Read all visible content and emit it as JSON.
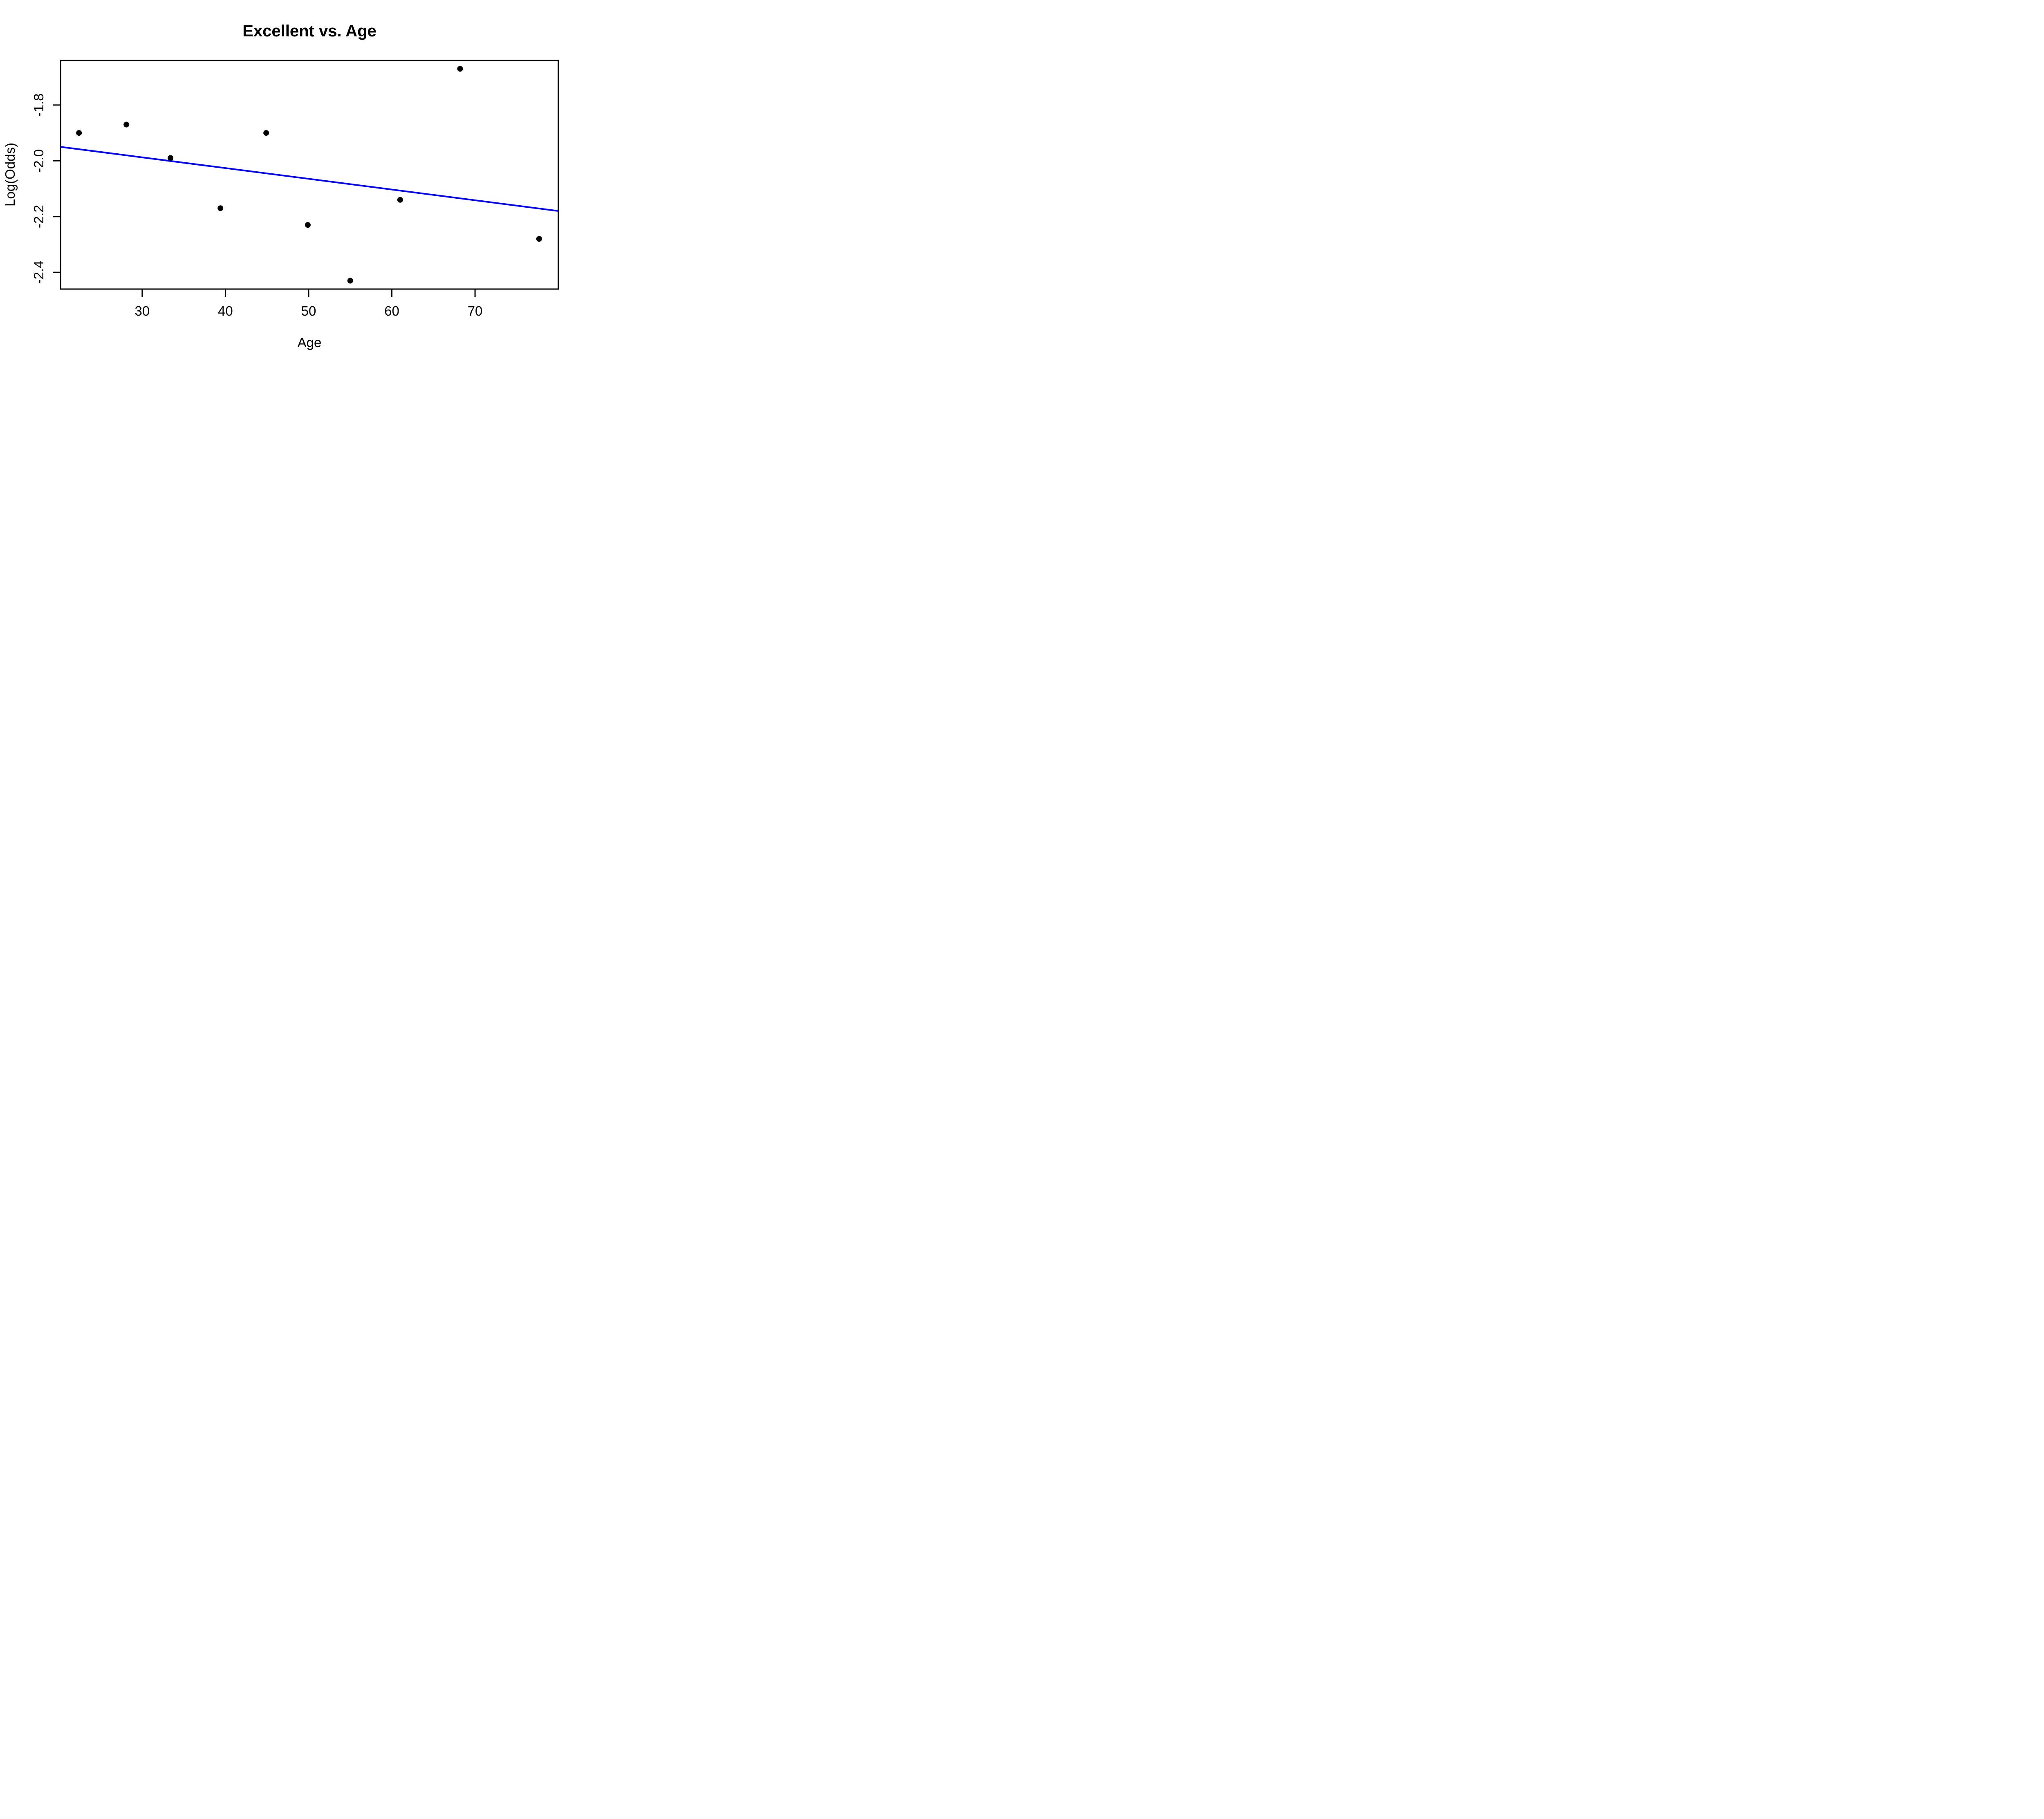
{
  "chart_data": {
    "type": "scatter",
    "title": "Excellent vs. Age",
    "xlabel": "Age",
    "ylabel": "Log(Odds)",
    "xlim": [
      20.2,
      80.0
    ],
    "ylim": [
      -2.46,
      -1.64
    ],
    "x_ticks": [
      30,
      40,
      50,
      60,
      70
    ],
    "y_ticks": [
      -1.8,
      -2.0,
      -2.2,
      -2.4
    ],
    "grid": false,
    "legend": "none",
    "background_color": "#ffffff",
    "axis_color": "#000000",
    "point_color": "#000000",
    "line_color": "#0000ff",
    "points": [
      {
        "x": 22.4,
        "y": -1.9
      },
      {
        "x": 28.1,
        "y": -1.87
      },
      {
        "x": 33.4,
        "y": -1.99
      },
      {
        "x": 39.4,
        "y": -2.17
      },
      {
        "x": 44.9,
        "y": -1.9
      },
      {
        "x": 49.9,
        "y": -2.23
      },
      {
        "x": 55.0,
        "y": -2.43
      },
      {
        "x": 61.0,
        "y": -2.14
      },
      {
        "x": 68.2,
        "y": -1.67
      },
      {
        "x": 77.7,
        "y": -2.28
      }
    ],
    "trend_line": {
      "x1": 20.2,
      "y1": -1.95,
      "x2": 80.0,
      "y2": -2.18
    }
  }
}
